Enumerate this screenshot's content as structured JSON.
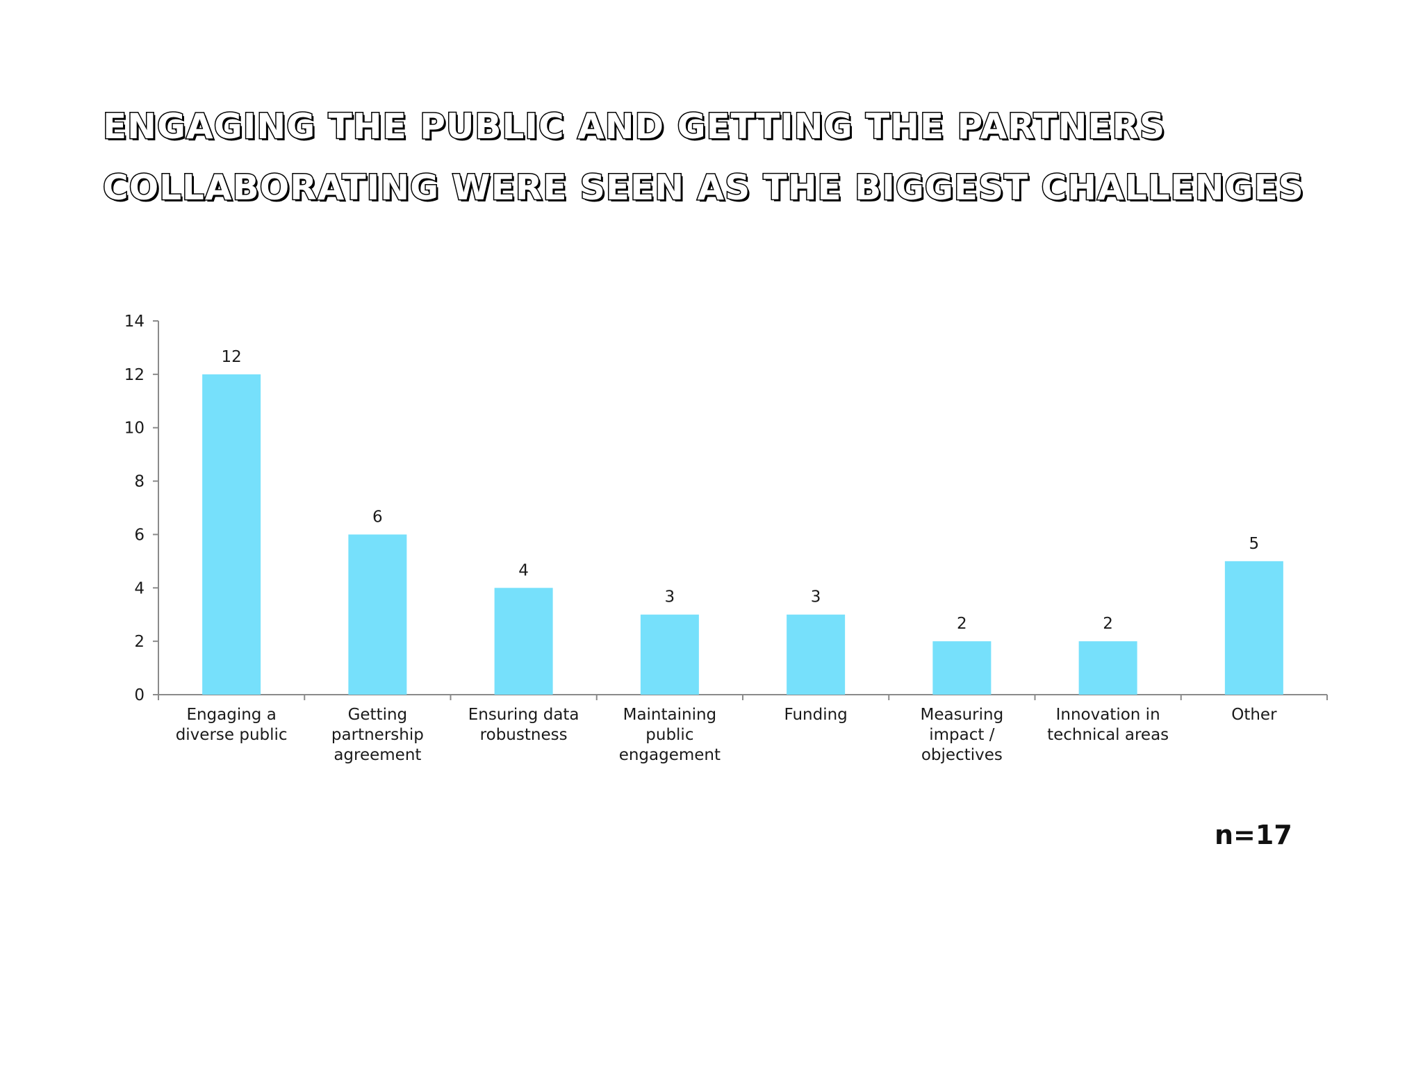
{
  "title": {
    "line1": "Engaging the public and getting the partners",
    "line2": "collaborating were seen as the biggest challenges"
  },
  "note": "n=17",
  "colors": {
    "bar": "#76E0FB",
    "axis": "#8a8a8a",
    "text": "#1a1a1a"
  },
  "chart_data": {
    "type": "bar",
    "categories": [
      [
        "Engaging a",
        "diverse public"
      ],
      [
        "Getting",
        "partnership",
        "agreement"
      ],
      [
        "Ensuring data",
        "robustness"
      ],
      [
        "Maintaining",
        "public",
        "engagement"
      ],
      [
        "Funding"
      ],
      [
        "Measuring",
        "impact /",
        "objectives"
      ],
      [
        "Innovation in",
        "technical areas"
      ],
      [
        "Other"
      ]
    ],
    "values": [
      12,
      6,
      4,
      3,
      3,
      2,
      2,
      5
    ],
    "data_labels": [
      "12",
      "6",
      "4",
      "3",
      "3",
      "2",
      "2",
      "5"
    ],
    "ylim": [
      0,
      14
    ],
    "yticks": [
      0,
      2,
      4,
      6,
      8,
      10,
      12,
      14
    ],
    "xlabel": "",
    "ylabel": "",
    "grid": false,
    "legend": "none"
  }
}
